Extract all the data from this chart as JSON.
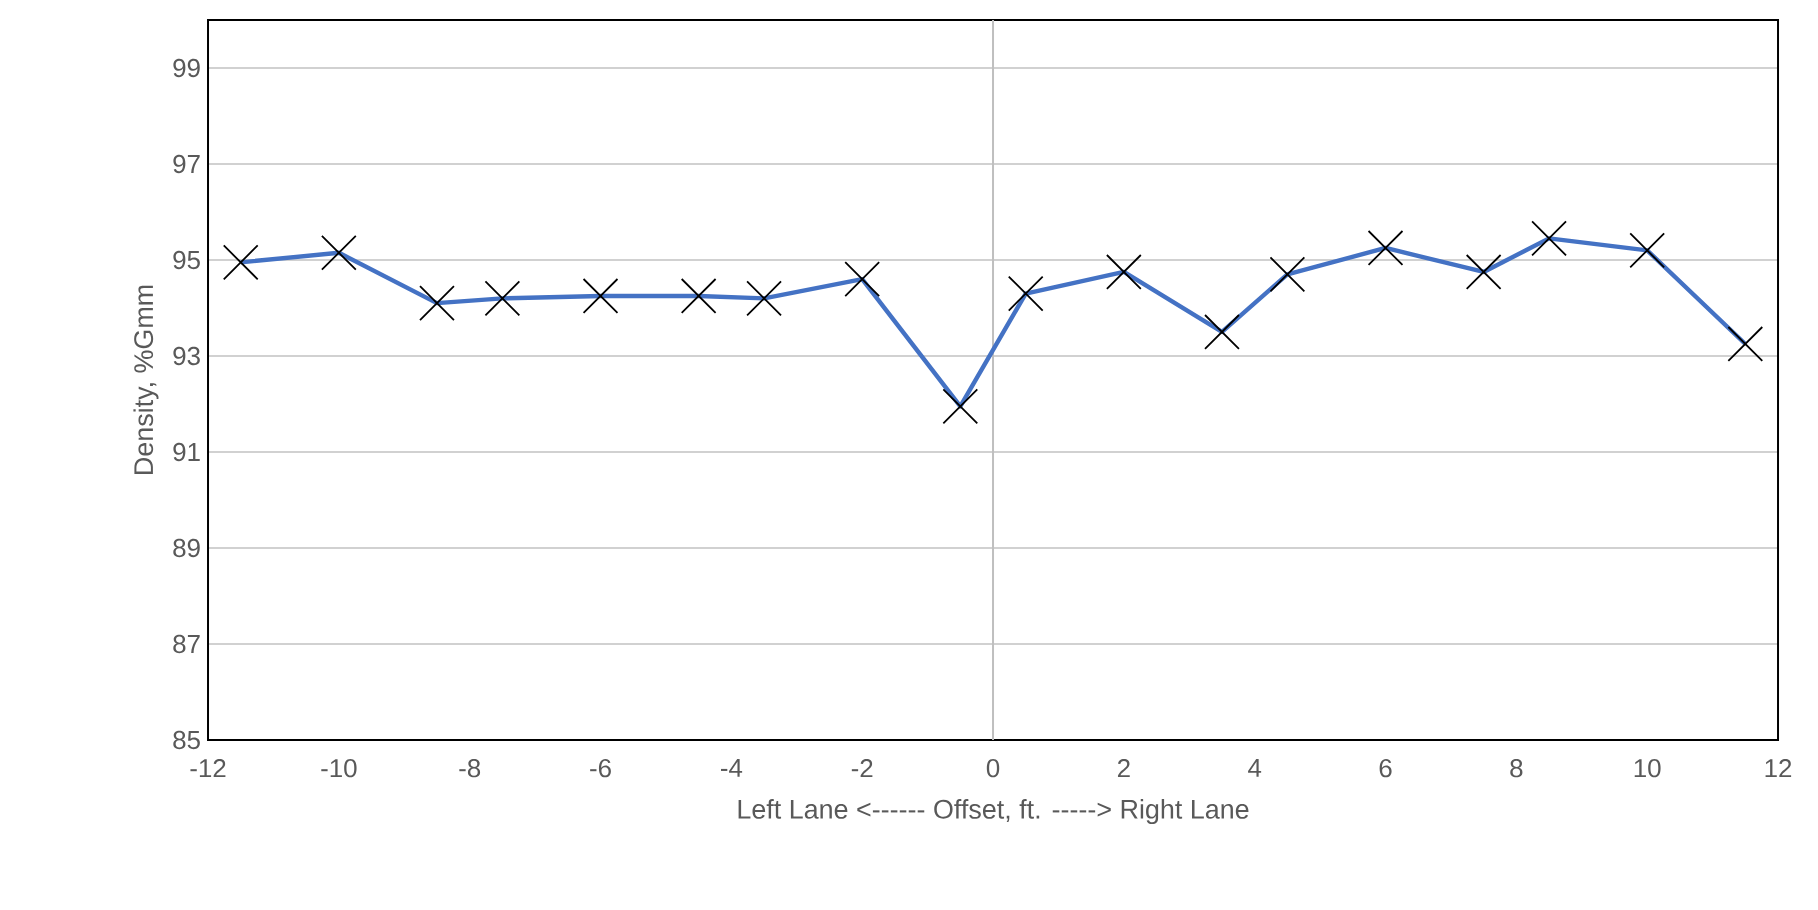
{
  "chart_data": {
    "type": "line",
    "xlabel": "Left Lane <------ Offset, ft.  -----> Right Lane",
    "ylabel": "Density, %Gmm",
    "x": [
      -11.5,
      -10,
      -8.5,
      -7.5,
      -6,
      -4.5,
      -3.5,
      -2,
      -0.5,
      0.5,
      2,
      3.5,
      4.5,
      6,
      7.5,
      8.5,
      10,
      11.5
    ],
    "series": [
      {
        "color": "#4472c4",
        "values": [
          94.95,
          95.15,
          94.1,
          94.2,
          94.25,
          94.25,
          94.2,
          94.6,
          91.95,
          94.3,
          94.75,
          93.5,
          94.7,
          95.25,
          94.75,
          95.45,
          95.2,
          93.25
        ]
      }
    ],
    "xlim": [
      -12,
      12
    ],
    "xticks": [
      -12,
      -10,
      -8,
      -6,
      -4,
      -2,
      0,
      2,
      4,
      6,
      8,
      10,
      12
    ],
    "ylim": [
      85,
      100
    ],
    "yticks": [
      85,
      87,
      89,
      91,
      93,
      95,
      97,
      99
    ],
    "grid": "y",
    "marker": "cross",
    "line_style": "solid"
  }
}
